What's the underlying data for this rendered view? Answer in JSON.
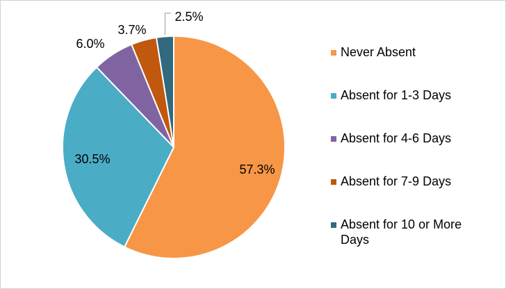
{
  "chart_data": {
    "type": "pie",
    "categories": [
      "Never Absent",
      "Absent for 1-3 Days",
      "Absent for 4-6 Days",
      "Absent for 7-9 Days",
      "Absent for 10 or More Days"
    ],
    "values": [
      57.3,
      30.5,
      6.0,
      3.7,
      2.5
    ],
    "value_labels": [
      "57.3%",
      "30.5%",
      "6.0%",
      "3.7%",
      "2.5%"
    ],
    "colors": [
      "#f79646",
      "#4bacc6",
      "#8064a2",
      "#c0580e",
      "#31697e"
    ],
    "legend": "right"
  }
}
